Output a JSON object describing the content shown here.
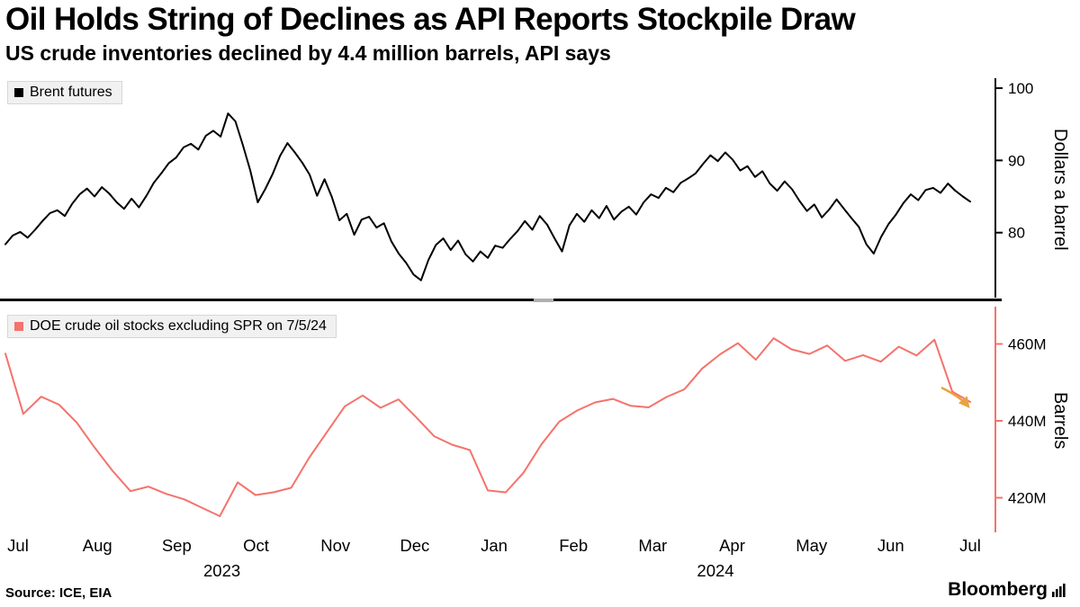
{
  "header": {
    "title": "Oil Holds String of Declines as API Reports Stockpile Draw",
    "subtitle": "US crude inventories declined by 4.4 million barrels, API says"
  },
  "source_label": "Source: ICE, EIA",
  "brand": "Bloomberg",
  "colors": {
    "brent_line": "#000000",
    "stocks_line": "#f4736c",
    "axis_top": "#000000",
    "axis_bottom": "#f4736c",
    "arrow": "#eaa23e",
    "tick_text": "#000000"
  },
  "x_axis": {
    "month_labels": [
      "Jul",
      "Aug",
      "Sep",
      "Oct",
      "Nov",
      "Dec",
      "Jan",
      "Feb",
      "Mar",
      "Apr",
      "May",
      "Jun",
      "Jul"
    ],
    "year_labels": [
      {
        "label": "2023",
        "month_index": 2.57
      },
      {
        "label": "2024",
        "month_index": 8.79
      }
    ]
  },
  "chart_data": [
    {
      "type": "line",
      "name": "Brent futures",
      "ylabel": "Dollars a barrel",
      "unit": "USD/barrel",
      "ylim": [
        71,
        101
      ],
      "grid": false,
      "legend_position": "top-left",
      "yticks": [
        {
          "value": 100,
          "label": "100"
        },
        {
          "value": 90,
          "label": "90"
        },
        {
          "value": 80,
          "label": "80"
        }
      ],
      "x_range": "Jul 2023 - Jul 2024",
      "values": [
        78.4,
        79.6,
        80.1,
        79.3,
        80.4,
        81.6,
        82.7,
        83.1,
        82.3,
        84.0,
        85.3,
        86.1,
        85.0,
        86.3,
        85.4,
        84.2,
        83.3,
        84.7,
        83.5,
        85.1,
        86.9,
        88.2,
        89.6,
        90.4,
        91.8,
        92.3,
        91.5,
        93.4,
        94.1,
        93.3,
        96.5,
        95.4,
        92.1,
        88.6,
        84.2,
        86.0,
        88.1,
        90.6,
        92.4,
        91.1,
        89.7,
        88.0,
        85.1,
        87.4,
        84.9,
        81.7,
        82.6,
        79.7,
        81.8,
        82.2,
        80.7,
        81.3,
        78.8,
        77.1,
        75.8,
        74.2,
        73.4,
        76.2,
        78.3,
        79.2,
        77.6,
        78.9,
        77.0,
        76.0,
        77.4,
        76.5,
        78.2,
        77.9,
        79.1,
        80.2,
        81.6,
        80.4,
        82.3,
        81.1,
        79.2,
        77.4,
        81.0,
        82.6,
        81.5,
        83.1,
        82.0,
        83.7,
        81.8,
        82.9,
        83.6,
        82.5,
        84.2,
        85.3,
        84.8,
        86.2,
        85.6,
        86.9,
        87.5,
        88.2,
        89.5,
        90.7,
        89.9,
        91.1,
        90.1,
        88.6,
        89.2,
        87.7,
        88.5,
        86.8,
        85.8,
        87.1,
        86.0,
        84.4,
        83.0,
        83.9,
        82.1,
        83.2,
        84.6,
        83.3,
        82.0,
        80.8,
        78.4,
        77.1,
        79.4,
        81.2,
        82.5,
        84.1,
        85.3,
        84.5,
        85.9,
        86.2,
        85.5,
        86.8,
        85.8,
        85.0,
        84.3
      ]
    },
    {
      "type": "line",
      "name": "DOE crude oil stocks excluding SPR on 7/5/24",
      "ylabel": "Barrels",
      "unit": "million barrels",
      "ylim": [
        411,
        469
      ],
      "grid": false,
      "legend_position": "top-left",
      "yticks": [
        {
          "value": 460,
          "label": "460M"
        },
        {
          "value": 440,
          "label": "440M"
        },
        {
          "value": 420,
          "label": "420M"
        }
      ],
      "x_range": "Jul 2023 - Jul 5 2024",
      "annotation": {
        "type": "arrow-down-right",
        "at": "last-point",
        "meaning": "stockpile draw"
      },
      "values": [
        457.5,
        441.8,
        446.3,
        444.2,
        439.5,
        433.0,
        427.0,
        421.7,
        422.9,
        421.0,
        419.6,
        417.4,
        415.2,
        424.0,
        420.7,
        421.4,
        422.6,
        430.4,
        437.1,
        443.8,
        446.6,
        443.4,
        445.6,
        440.9,
        436.0,
        433.8,
        432.4,
        421.9,
        421.4,
        426.5,
        433.9,
        439.8,
        442.7,
        444.8,
        445.7,
        443.9,
        443.5,
        446.2,
        448.2,
        453.6,
        457.3,
        460.2,
        455.9,
        461.5,
        458.6,
        457.4,
        459.6,
        455.6,
        457.1,
        455.4,
        459.3,
        457.0,
        461.1,
        447.6,
        444.9
      ]
    }
  ]
}
